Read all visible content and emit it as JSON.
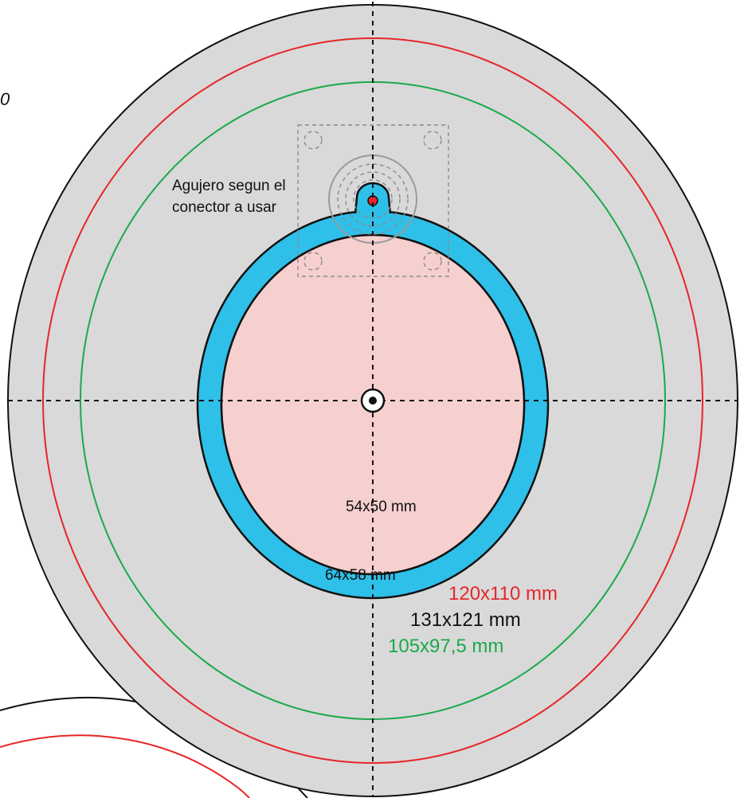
{
  "labels": {
    "connector_hole": [
      "Agujero segun el",
      "conector a usar"
    ],
    "inner_pink": "54x50 mm",
    "blue_ring": "64x58 mm",
    "red_ring": "120x110 mm",
    "outer_gray": "131x121 mm",
    "green_ring": "105x97,5 mm",
    "cut_edge": "0"
  },
  "colors": {
    "outer_fill": "#d9d9d9",
    "red_line": "#e6262a",
    "green_line": "#1aaa4a",
    "blue_ring": "#2ec0e8",
    "pink_fill": "#f6cfcf",
    "outline": "#111111",
    "connector_gray": "#9a9a9a"
  }
}
